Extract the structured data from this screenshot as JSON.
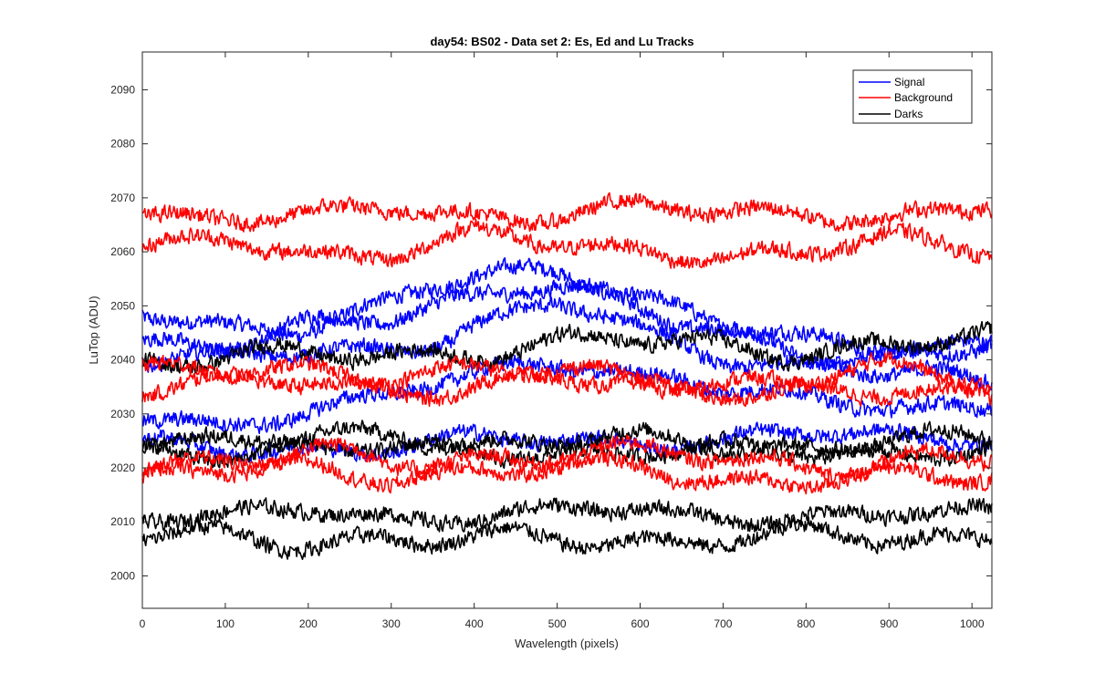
{
  "chart_data": {
    "type": "line",
    "title": "day54: BS02 - Data set 2: Es, Ed and Lu Tracks",
    "xlabel": "Wavelength (pixels)",
    "ylabel": "LuTop (ADU)",
    "xlim": [
      0,
      1024
    ],
    "ylim": [
      1994,
      2097
    ],
    "x_ticks": [
      0,
      100,
      200,
      300,
      400,
      500,
      600,
      700,
      800,
      900,
      1000
    ],
    "y_ticks": [
      2000,
      2010,
      2020,
      2030,
      2040,
      2050,
      2060,
      2070,
      2080,
      2090
    ],
    "grid": false,
    "legend": {
      "position": "top-right",
      "entries": [
        {
          "label": "Signal",
          "color": "#0000ff"
        },
        {
          "label": "Background",
          "color": "#ff0000"
        },
        {
          "label": "Darks",
          "color": "#000000"
        }
      ]
    },
    "groups": [
      {
        "name": "Signal",
        "color": "#0000ff",
        "tracks": [
          {
            "x": [
              0,
              100,
              200,
              300,
              350,
              400,
              450,
              500,
              550,
              600,
              650,
              700,
              800,
              900,
              1024
            ],
            "y": [
              2048,
              2046,
              2047,
              2050,
              2053,
              2055,
              2056,
              2057,
              2055,
              2052,
              2049,
              2046,
              2043,
              2043,
              2043
            ]
          },
          {
            "x": [
              0,
              100,
              200,
              300,
              350,
              400,
              450,
              500,
              550,
              600,
              650,
              700,
              800,
              900,
              1024
            ],
            "y": [
              2043,
              2044,
              2046,
              2047,
              2049,
              2052,
              2055,
              2055,
              2052,
              2049,
              2046,
              2044,
              2042,
              2041,
              2042
            ]
          },
          {
            "x": [
              0,
              100,
              200,
              300,
              350,
              400,
              450,
              500,
              550,
              600,
              650,
              700,
              800,
              900,
              1024
            ],
            "y": [
              2041,
              2040,
              2041,
              2042,
              2044,
              2047,
              2048,
              2050,
              2048,
              2045,
              2043,
              2041,
              2039,
              2037,
              2036
            ]
          },
          {
            "x": [
              0,
              100,
              200,
              300,
              350,
              400,
              450,
              500,
              550,
              600,
              650,
              700,
              800,
              900,
              1024
            ],
            "y": [
              2029,
              2028,
              2031,
              2033,
              2035,
              2037,
              2039,
              2040,
              2039,
              2037,
              2036,
              2034,
              2033,
              2032,
              2031
            ]
          },
          {
            "x": [
              0,
              100,
              200,
              300,
              400,
              500,
              600,
              700,
              800,
              900,
              1024
            ],
            "y": [
              2024,
              2023,
              2024,
              2024,
              2025,
              2025,
              2025,
              2025,
              2026,
              2026,
              2026
            ]
          }
        ]
      },
      {
        "name": "Background",
        "color": "#ff0000",
        "tracks": [
          {
            "x": [
              0,
              100,
              200,
              300,
              400,
              500,
              600,
              700,
              800,
              900,
              1024
            ],
            "y": [
              2067,
              2067,
              2066,
              2068,
              2067,
              2067,
              2068,
              2067,
              2068,
              2066,
              2068
            ]
          },
          {
            "x": [
              0,
              100,
              200,
              300,
              400,
              500,
              600,
              700,
              800,
              900,
              1024
            ],
            "y": [
              2060,
              2062,
              2060,
              2060,
              2063,
              2061,
              2061,
              2059,
              2059,
              2063,
              2061
            ]
          },
          {
            "x": [
              0,
              100,
              200,
              300,
              400,
              500,
              600,
              700,
              800,
              900,
              1024
            ],
            "y": [
              2038,
              2037,
              2038,
              2038,
              2038,
              2037,
              2037,
              2036,
              2036,
              2038,
              2037
            ]
          },
          {
            "x": [
              0,
              100,
              200,
              300,
              400,
              500,
              600,
              700,
              800,
              900,
              1024
            ],
            "y": [
              2035,
              2035,
              2036,
              2035,
              2035,
              2036,
              2035,
              2035,
              2034,
              2033,
              2034
            ]
          },
          {
            "x": [
              0,
              100,
              200,
              300,
              400,
              500,
              600,
              700,
              800,
              900,
              1024
            ],
            "y": [
              2021,
              2022,
              2022,
              2021,
              2022,
              2023,
              2022,
              2022,
              2021,
              2021,
              2021
            ]
          },
          {
            "x": [
              0,
              100,
              200,
              300,
              400,
              500,
              600,
              700,
              800,
              900,
              1024
            ],
            "y": [
              2018,
              2019,
              2020,
              2019,
              2019,
              2019,
              2021,
              2018,
              2017,
              2018,
              2019
            ]
          }
        ]
      },
      {
        "name": "Darks",
        "color": "#000000",
        "tracks": [
          {
            "x": [
              0,
              100,
              200,
              300,
              400,
              500,
              600,
              700,
              800,
              900,
              1024
            ],
            "y": [
              2040,
              2041,
              2040,
              2041,
              2042,
              2043,
              2043,
              2043,
              2042,
              2042,
              2044
            ]
          },
          {
            "x": [
              0,
              100,
              200,
              300,
              400,
              500,
              600,
              700,
              800,
              900,
              1024
            ],
            "y": [
              2026,
              2025,
              2025,
              2026,
              2025,
              2025,
              2025,
              2024,
              2024,
              2025,
              2025
            ]
          },
          {
            "x": [
              0,
              100,
              200,
              300,
              400,
              500,
              600,
              700,
              800,
              900,
              1024
            ],
            "y": [
              2023,
              2023,
              2024,
              2023,
              2023,
              2023,
              2023,
              2023,
              2023,
              2023,
              2023
            ]
          },
          {
            "x": [
              0,
              100,
              200,
              300,
              400,
              500,
              600,
              700,
              800,
              900,
              1024
            ],
            "y": [
              2011,
              2011,
              2012,
              2011,
              2011,
              2012,
              2012,
              2011,
              2011,
              2011,
              2012
            ]
          },
          {
            "x": [
              0,
              100,
              200,
              300,
              400,
              500,
              600,
              700,
              800,
              900,
              1024
            ],
            "y": [
              2007,
              2007,
              2007,
              2007,
              2006,
              2007,
              2007,
              2007,
              2007,
              2007,
              2008
            ]
          }
        ]
      }
    ]
  }
}
